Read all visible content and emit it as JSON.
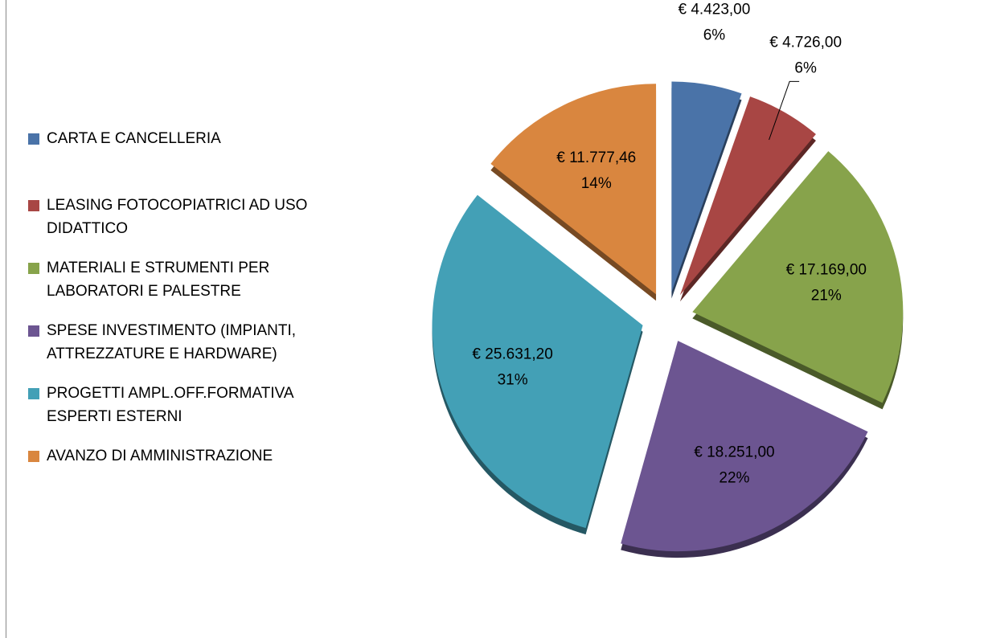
{
  "chart_data": {
    "type": "pie",
    "categories": [
      "CARTA E CANCELLERIA",
      "LEASING FOTOCOPIATRICI AD USO DIDATTICO",
      "MATERIALI E STRUMENTI PER LABORATORI E PALESTRE",
      "SPESE INVESTIMENTO (IMPIANTI, ATTREZZATURE E HARDWARE)",
      "PROGETTI AMPL.OFF.FORMATIVA ESPERTI ESTERNI",
      "AVANZO DI AMMINISTRAZIONE"
    ],
    "values": [
      4423,
      4726,
      17169,
      18251,
      25631.2,
      11777.46
    ],
    "value_labels": [
      "€ 4.423,00",
      "€ 4.726,00",
      "€ 17.169,00",
      "€ 18.251,00",
      "€ 25.631,20",
      "€ 11.777,46"
    ],
    "percentages": [
      6,
      6,
      21,
      22,
      31,
      14
    ],
    "percentage_labels": [
      "6%",
      "6%",
      "21%",
      "22%",
      "31%",
      "14%"
    ],
    "colors": [
      "#4a73a8",
      "#a84644",
      "#87a34b",
      "#6c5591",
      "#43a0b6",
      "#d9863f"
    ],
    "legend": "left"
  }
}
